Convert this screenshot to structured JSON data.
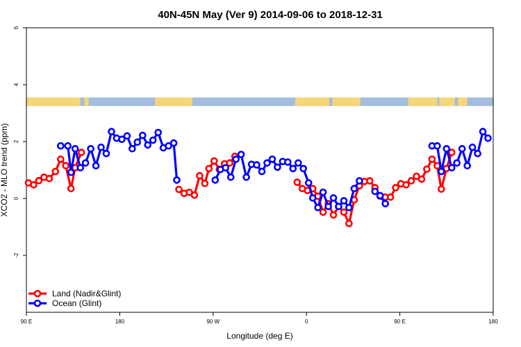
{
  "chart_data": {
    "type": "line",
    "title": "40N-45N May (Ver 9)   2014-09-06 to 2018-12-31",
    "xlabel": "Longitude (deg E)",
    "ylabel": "XCO2 - MLO trend (ppm)",
    "xlim": [
      90,
      540
    ],
    "ylim": [
      -4,
      6
    ],
    "x_ticks": [
      {
        "value": 90,
        "label": "90 E"
      },
      {
        "value": 180,
        "label": "180"
      },
      {
        "value": 270,
        "label": "90 W"
      },
      {
        "value": 360,
        "label": "0"
      },
      {
        "value": 450,
        "label": "90 E"
      },
      {
        "value": 540,
        "label": "180"
      }
    ],
    "y_ticks": [
      {
        "value": -2,
        "label": "-2"
      },
      {
        "value": 0,
        "label": "0"
      },
      {
        "value": 2,
        "label": "2"
      },
      {
        "value": 4,
        "label": "4"
      },
      {
        "value": 6,
        "label": "6"
      }
    ],
    "grid": false,
    "legend_position": "bottom-left",
    "surface_strip": {
      "y_range": [
        3.25,
        3.55
      ],
      "ocean_color": "#a3bcdf",
      "land_color": "#f5d77a",
      "land_segments": [
        [
          90,
          142
        ],
        [
          146,
          150
        ],
        [
          214,
          250
        ],
        [
          349,
          382
        ],
        [
          385,
          412
        ],
        [
          458,
          486
        ],
        [
          488,
          503
        ],
        [
          506,
          515
        ]
      ]
    },
    "series": [
      {
        "name": "Land (Nadir&Glint)",
        "color": "#ff0000",
        "segments": [
          [
            [
              92,
              0.55
            ],
            [
              97,
              0.48
            ],
            [
              102,
              0.63
            ],
            [
              107,
              0.75
            ],
            [
              112,
              0.7
            ],
            [
              118,
              0.95
            ],
            [
              123,
              1.38
            ],
            [
              128,
              1.15
            ],
            [
              133,
              0.35
            ],
            [
              137,
              1.08
            ],
            [
              143,
              1.62
            ]
          ],
          [
            [
              237,
              0.32
            ],
            [
              242,
              0.18
            ],
            [
              247,
              0.22
            ],
            [
              252,
              0.12
            ],
            [
              257,
              0.8
            ],
            [
              262,
              0.53
            ],
            [
              266,
              1.05
            ],
            [
              271,
              1.32
            ],
            [
              276,
              1.02
            ],
            [
              281,
              1.22
            ],
            [
              286,
              1.25
            ],
            [
              291,
              1.48
            ]
          ],
          [
            [
              351,
              0.57
            ],
            [
              356,
              0.35
            ],
            [
              361,
              0.28
            ],
            [
              366,
              0.35
            ],
            [
              371,
              0.08
            ],
            [
              376,
              -0.48
            ],
            [
              381,
              -0.18
            ],
            [
              386,
              -0.58
            ],
            [
              391,
              -0.28
            ],
            [
              396,
              -0.48
            ],
            [
              401,
              -0.88
            ],
            [
              406,
              -0.05
            ],
            [
              411,
              0.45
            ],
            [
              416,
              0.6
            ],
            [
              421,
              0.62
            ],
            [
              426,
              0.38
            ],
            [
              431,
              0.08
            ],
            [
              436,
              0.05
            ],
            [
              441,
              0.05
            ],
            [
              446,
              0.38
            ],
            [
              451,
              0.52
            ],
            [
              456,
              0.48
            ],
            [
              461,
              0.62
            ],
            [
              466,
              0.78
            ],
            [
              471,
              0.68
            ],
            [
              476,
              1.03
            ],
            [
              481,
              1.38
            ],
            [
              486,
              1.15
            ],
            [
              490,
              0.33
            ],
            [
              495,
              1.05
            ],
            [
              500,
              1.62
            ]
          ]
        ]
      },
      {
        "name": "Ocean (Glint)",
        "color": "#0000ff",
        "segments": [
          [
            [
              123,
              1.85
            ],
            [
              130,
              1.85
            ],
            [
              133,
              0.92
            ],
            [
              137,
              1.75
            ],
            [
              142,
              1.08
            ],
            [
              147,
              1.25
            ],
            [
              152,
              1.75
            ],
            [
              157,
              1.15
            ],
            [
              162,
              1.8
            ],
            [
              167,
              1.58
            ],
            [
              172,
              2.35
            ],
            [
              177,
              2.12
            ],
            [
              182,
              2.08
            ],
            [
              187,
              2.2
            ],
            [
              192,
              1.75
            ],
            [
              197,
              1.98
            ],
            [
              202,
              2.22
            ],
            [
              207,
              1.88
            ],
            [
              212,
              2.05
            ],
            [
              217,
              2.32
            ],
            [
              222,
              1.78
            ],
            [
              227,
              1.85
            ],
            [
              232,
              1.95
            ],
            [
              235,
              0.65
            ]
          ],
          [
            [
              272,
              0.65
            ],
            [
              277,
              1.02
            ],
            [
              282,
              1.08
            ],
            [
              287,
              0.75
            ],
            [
              292,
              1.38
            ],
            [
              297,
              1.55
            ],
            [
              302,
              0.75
            ],
            [
              307,
              1.2
            ],
            [
              312,
              1.18
            ],
            [
              317,
              0.95
            ],
            [
              322,
              1.25
            ],
            [
              327,
              1.38
            ],
            [
              332,
              1.1
            ],
            [
              337,
              1.3
            ],
            [
              342,
              1.28
            ],
            [
              347,
              1.05
            ],
            [
              352,
              1.25
            ],
            [
              357,
              1.05
            ],
            [
              362,
              0.55
            ],
            [
              366,
              0.02
            ],
            [
              371,
              -0.32
            ],
            [
              376,
              0.22
            ],
            [
              381,
              -0.28
            ],
            [
              386,
              0.02
            ],
            [
              391,
              -0.28
            ],
            [
              396,
              -0.08
            ],
            [
              401,
              -0.32
            ],
            [
              406,
              0.35
            ],
            [
              411,
              0.62
            ]
          ],
          [
            [
              426,
              0.25
            ],
            [
              431,
              0.1
            ],
            [
              436,
              -0.18
            ]
          ],
          [
            [
              481,
              1.85
            ],
            [
              486,
              1.85
            ],
            [
              490,
              0.95
            ],
            [
              495,
              1.75
            ],
            [
              500,
              1.08
            ],
            [
              505,
              1.25
            ],
            [
              510,
              1.75
            ],
            [
              515,
              1.15
            ],
            [
              520,
              1.8
            ],
            [
              525,
              1.58
            ],
            [
              530,
              2.35
            ],
            [
              535,
              2.12
            ]
          ]
        ]
      }
    ]
  }
}
